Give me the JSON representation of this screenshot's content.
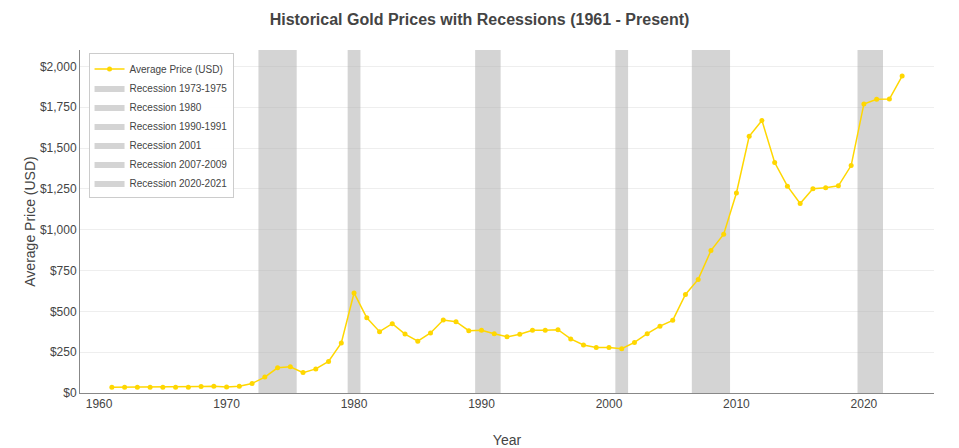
{
  "chart_data": {
    "type": "line",
    "title": "Historical Gold Prices with Recessions (1961 - Present)",
    "xlabel": "Year",
    "ylabel": "Average Price (USD)",
    "x": [
      1961,
      1962,
      1963,
      1964,
      1965,
      1966,
      1967,
      1968,
      1969,
      1970,
      1971,
      1972,
      1973,
      1974,
      1975,
      1976,
      1977,
      1978,
      1979,
      1980,
      1981,
      1982,
      1983,
      1984,
      1985,
      1986,
      1987,
      1988,
      1989,
      1990,
      1991,
      1992,
      1993,
      1994,
      1995,
      1996,
      1997,
      1998,
      1999,
      2000,
      2001,
      2002,
      2003,
      2004,
      2005,
      2006,
      2007,
      2008,
      2009,
      2010,
      2011,
      2012,
      2013,
      2014,
      2015,
      2016,
      2017,
      2018,
      2019,
      2020,
      2021,
      2022,
      2023
    ],
    "series": [
      {
        "name": "Average Price (USD)",
        "color": "#FFD700",
        "marker": "circle",
        "line_style": "solid",
        "values": [
          35.1,
          35.2,
          35.1,
          35.1,
          35.1,
          35.2,
          35.2,
          39.3,
          41.3,
          36.0,
          40.8,
          58.2,
          97.4,
          154.0,
          160.9,
          124.8,
          147.7,
          193.2,
          306.7,
          612.6,
          460.0,
          375.7,
          424.4,
          360.5,
          317.3,
          367.7,
          446.5,
          436.9,
          381.5,
          383.6,
          362.2,
          343.8,
          359.8,
          384.0,
          384.2,
          387.8,
          331.0,
          294.1,
          278.8,
          279.1,
          271.0,
          309.8,
          363.4,
          409.2,
          444.7,
          603.5,
          695.4,
          871.7,
          972.4,
          1224.5,
          1571.5,
          1668.9,
          1411.2,
          1266.4,
          1160.1,
          1250.7,
          1257.0,
          1268.5,
          1392.6,
          1769.6,
          1798.9,
          1800.0,
          1940.5
        ]
      }
    ],
    "bands": [
      {
        "name": "Recession 1973-1975",
        "start": 1972.5,
        "end": 1975.5,
        "color": "#b0b0b0"
      },
      {
        "name": "Recession 1980",
        "start": 1979.5,
        "end": 1980.5,
        "color": "#b0b0b0"
      },
      {
        "name": "Recession 1990-1991",
        "start": 1989.5,
        "end": 1991.5,
        "color": "#b0b0b0"
      },
      {
        "name": "Recession 2001",
        "start": 2000.5,
        "end": 2001.5,
        "color": "#b0b0b0"
      },
      {
        "name": "Recession 2007-2009",
        "start": 2006.5,
        "end": 2009.5,
        "color": "#b0b0b0"
      },
      {
        "name": "Recession 2020-2021",
        "start": 2019.5,
        "end": 2021.5,
        "color": "#b0b0b0"
      }
    ],
    "xlim": [
      1958.5,
      2025.5
    ],
    "ylim": [
      0,
      2100
    ],
    "xticks": [
      1960,
      1970,
      1980,
      1990,
      2000,
      2010,
      2020
    ],
    "yticks": [
      {
        "value": 0,
        "label": "$0"
      },
      {
        "value": 250,
        "label": "$250"
      },
      {
        "value": 500,
        "label": "$500"
      },
      {
        "value": 750,
        "label": "$750"
      },
      {
        "value": 1000,
        "label": "$1,000"
      },
      {
        "value": 1250,
        "label": "$1,250"
      },
      {
        "value": 1500,
        "label": "$1,500"
      },
      {
        "value": 1750,
        "label": "$1,750"
      },
      {
        "value": 2000,
        "label": "$2,000"
      }
    ],
    "grid": "y",
    "legend": "upper left"
  }
}
